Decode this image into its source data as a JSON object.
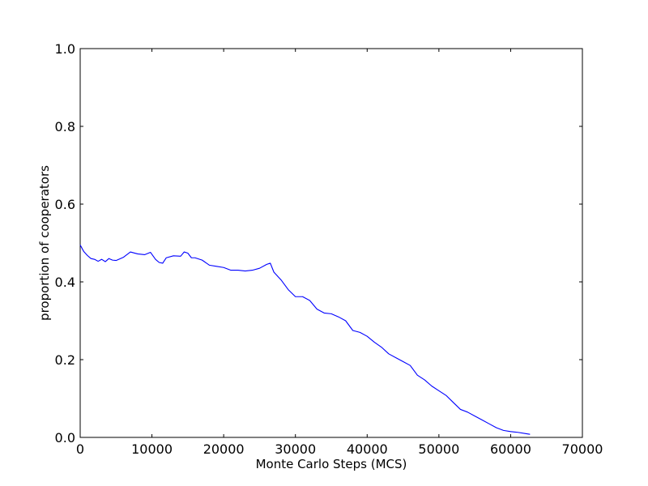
{
  "chart_data": {
    "type": "line",
    "title": "",
    "xlabel": "Monte Carlo Steps (MCS)",
    "ylabel": "proportion of cooperators",
    "xlim": [
      0,
      70000
    ],
    "ylim": [
      0.0,
      1.0
    ],
    "grid": false,
    "legend": "none",
    "x_ticks": [
      0,
      10000,
      20000,
      30000,
      40000,
      50000,
      60000,
      70000
    ],
    "x_tick_labels": [
      "0",
      "10000",
      "20000",
      "30000",
      "40000",
      "50000",
      "60000",
      "70000"
    ],
    "y_ticks": [
      0.0,
      0.2,
      0.4,
      0.6,
      0.8,
      1.0
    ],
    "y_tick_labels": [
      "0.0",
      "0.2",
      "0.4",
      "0.6",
      "0.8",
      "1.0"
    ],
    "series": [
      {
        "color": "#0000ff",
        "x": [
          0,
          500,
          1000,
          1500,
          2000,
          2500,
          3000,
          3500,
          4000,
          4500,
          5000,
          6000,
          7000,
          8000,
          9000,
          9800,
          10500,
          11000,
          11500,
          12000,
          13000,
          14000,
          14500,
          15000,
          15500,
          16000,
          17000,
          18000,
          19000,
          20000,
          21000,
          22000,
          23000,
          24000,
          25000,
          26000,
          26500,
          27000,
          28000,
          29000,
          30000,
          31000,
          32000,
          33000,
          34000,
          35000,
          36000,
          37000,
          38000,
          39000,
          40000,
          41000,
          42000,
          43000,
          44000,
          45000,
          46000,
          47000,
          48000,
          49000,
          50000,
          51000,
          52000,
          53000,
          54000,
          55000,
          56000,
          57000,
          58000,
          59000,
          60000,
          61000,
          62000,
          62700
        ],
        "values": [
          0.495,
          0.478,
          0.468,
          0.46,
          0.458,
          0.453,
          0.458,
          0.452,
          0.46,
          0.456,
          0.455,
          0.463,
          0.477,
          0.472,
          0.47,
          0.476,
          0.458,
          0.45,
          0.448,
          0.462,
          0.467,
          0.466,
          0.477,
          0.474,
          0.462,
          0.462,
          0.456,
          0.443,
          0.44,
          0.437,
          0.43,
          0.43,
          0.428,
          0.43,
          0.435,
          0.445,
          0.448,
          0.425,
          0.405,
          0.38,
          0.362,
          0.362,
          0.352,
          0.33,
          0.32,
          0.318,
          0.31,
          0.3,
          0.275,
          0.27,
          0.26,
          0.245,
          0.232,
          0.215,
          0.205,
          0.195,
          0.185,
          0.16,
          0.148,
          0.132,
          0.12,
          0.108,
          0.09,
          0.072,
          0.065,
          0.055,
          0.045,
          0.035,
          0.025,
          0.018,
          0.015,
          0.013,
          0.01,
          0.008
        ]
      }
    ]
  }
}
